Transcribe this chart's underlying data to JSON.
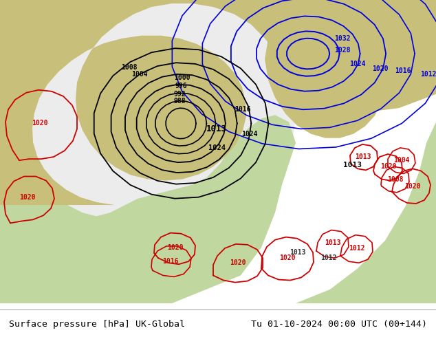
{
  "title_left": "Surface pressure [hPa] UK-Global",
  "title_right": "Tu 01-10-2024 00:00 UTC (00+144)",
  "land_color": "#c8c07a",
  "sea_color": "#b0c8b0",
  "domain_color": "#e8e8e8",
  "europe_green": "#c0d8a0",
  "footer_color": "#ffffff",
  "figsize": [
    6.34,
    4.9
  ],
  "dpi": 100
}
